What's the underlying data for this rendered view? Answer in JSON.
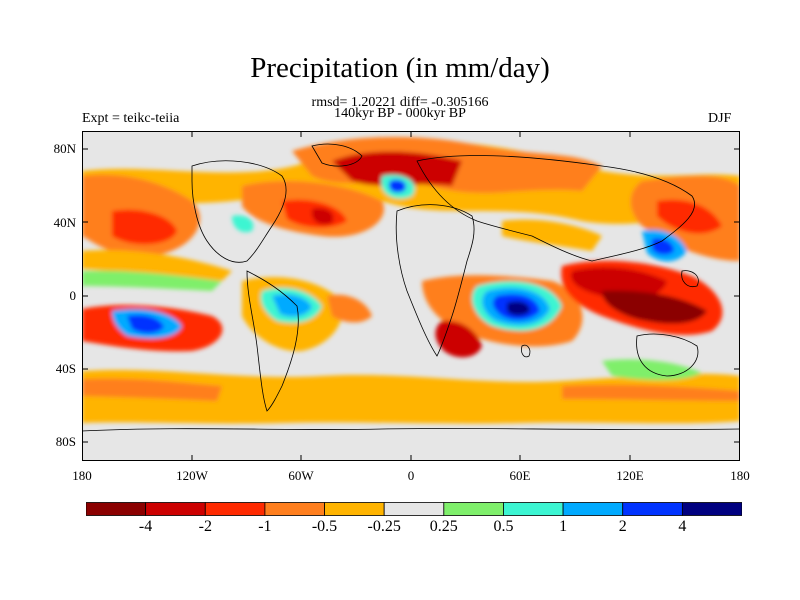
{
  "title": "Precipitation (in mm/day)",
  "stats_line": "rmsd= 1.20221  diff= -0.305166",
  "period_line": "140kyr BP - 000kyr BP",
  "left_label": "Expt = teikc-teiia",
  "right_label": "DJF",
  "lat_ticks": [
    "80N",
    "40N",
    "0",
    "40S",
    "80S"
  ],
  "lon_ticks": [
    "180",
    "120W",
    "60W",
    "0",
    "60E",
    "120E",
    "180"
  ],
  "colorbar": {
    "labels": [
      "-4",
      "-2",
      "-1",
      "-0.5",
      "-0.25",
      "0.25",
      "0.5",
      "1",
      "2",
      "4"
    ],
    "colors": [
      "#8b0000",
      "#cc0000",
      "#ff2a00",
      "#ff7f1e",
      "#ffb400",
      "#e6e6e6",
      "#7fef6b",
      "#3cf5d2",
      "#00aaff",
      "#0033ff",
      "#000080"
    ]
  }
}
